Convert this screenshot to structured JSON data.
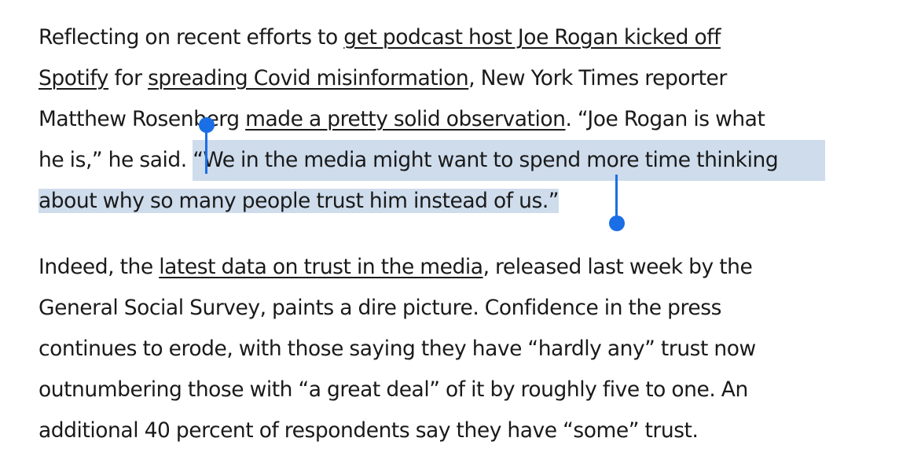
{
  "paragraph1": {
    "line1": {
      "t1": "Reflecting on recent efforts to ",
      "link1": "get podcast host Joe Rogan kicked off"
    },
    "line2": {
      "link1b": "Spotify",
      "t2": " for ",
      "link2": "spreading Covid misinformation",
      "t3": ", New York Times reporter"
    },
    "line3": {
      "t4": "Matthew Rosenberg ",
      "link3": "made a pretty solid observation",
      "t5": ". “Joe Rogan is what"
    },
    "line4": {
      "t6": "he is,” he said. ",
      "sel1": "“We in the media might want to spend more time thinking"
    },
    "line5": {
      "sel2": "about why so many people trust him instead of us.”"
    }
  },
  "paragraph2": {
    "line1": {
      "t1": "Indeed, the ",
      "link1": "latest data on trust in the media",
      "t2": ", released last week by the"
    },
    "line2": "General Social Survey, paints a dire picture. Confidence in the press",
    "line3": "continues to erode, with those saying they have “hardly any” trust now",
    "line4": "outnumbering those with “a great deal” of it by roughly five to one. An",
    "line5": "additional 40 percent of respondents say they have “some” trust."
  },
  "colors": {
    "text": "#1a1a1a",
    "selection": "#cedcec",
    "handle": "#1a6ee6"
  }
}
